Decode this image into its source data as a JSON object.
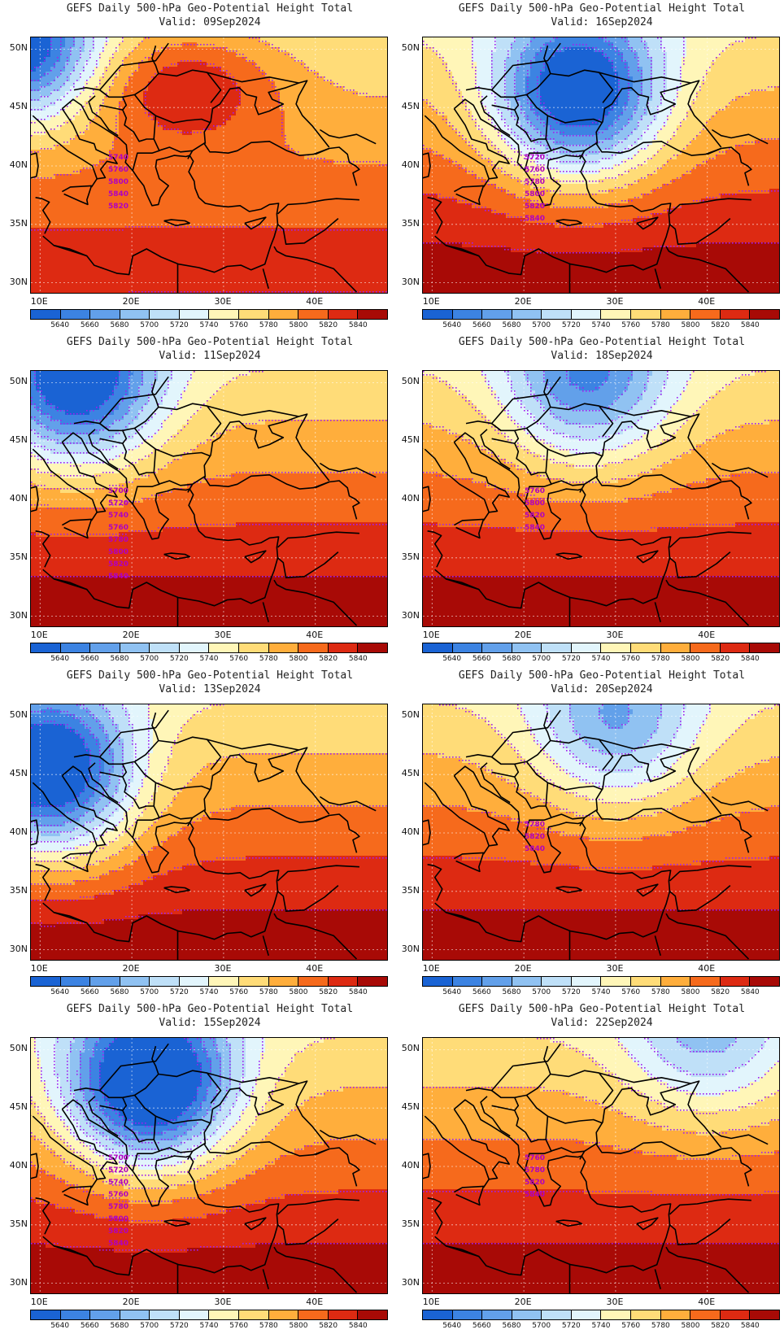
{
  "map": {
    "title": "GEFS Daily 500-hPa Geo-Potential Height Total",
    "extent": {
      "lon": [
        9,
        48
      ],
      "lat": [
        29,
        51
      ]
    },
    "lon_ticks": [
      "10E",
      "20E",
      "30E",
      "40E"
    ],
    "lat_ticks": [
      "50N",
      "45N",
      "40N",
      "35N",
      "30N"
    ],
    "colorbar": {
      "levels": [
        "5640",
        "5660",
        "5680",
        "5700",
        "5720",
        "5740",
        "5760",
        "5780",
        "5800",
        "5820",
        "5840"
      ],
      "colors": [
        "#1a63d4",
        "#3c83e2",
        "#62a0ea",
        "#90c2f2",
        "#bfe0f8",
        "#e2f5fc",
        "#fff6b8",
        "#ffdc78",
        "#ffae3c",
        "#f66a1c",
        "#dd2a12",
        "#a80a06"
      ]
    },
    "contour_color": "#a020f0"
  },
  "panels": [
    {
      "valid": "Valid: 09Sep2024",
      "labels": [
        "5740",
        "5760",
        "5800",
        "5840",
        "5820"
      ]
    },
    {
      "valid": "Valid: 16Sep2024",
      "labels": [
        "5720",
        "5760",
        "5780",
        "5800",
        "5820",
        "5840"
      ]
    },
    {
      "valid": "Valid: 11Sep2024",
      "labels": [
        "5700",
        "5720",
        "5740",
        "5760",
        "5780",
        "5800",
        "5820",
        "5840"
      ]
    },
    {
      "valid": "Valid: 18Sep2024",
      "labels": [
        "5760",
        "5800",
        "5820",
        "5840"
      ]
    },
    {
      "valid": "Valid: 13Sep2024",
      "labels": []
    },
    {
      "valid": "Valid: 20Sep2024",
      "labels": [
        "5780",
        "5820",
        "5840"
      ]
    },
    {
      "valid": "Valid: 15Sep2024",
      "labels": [
        "5700",
        "5720",
        "5740",
        "5760",
        "5780",
        "5800",
        "5820",
        "5840"
      ]
    },
    {
      "valid": "Valid: 22Sep2024",
      "labels": [
        "5760",
        "5780",
        "5820",
        "5840"
      ]
    }
  ]
}
